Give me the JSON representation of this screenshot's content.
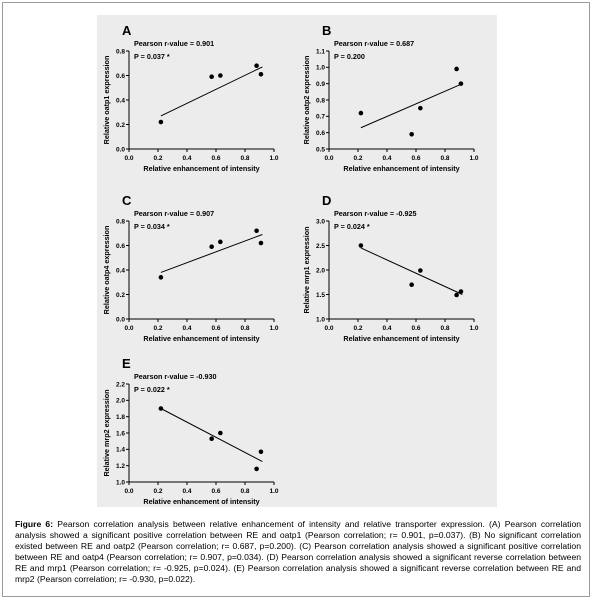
{
  "caption": {
    "label": "Figure 6:",
    "text": "Pearson correlation analysis between relative enhancement of intensity and relative transporter expression. (A) Pearson correlation analysis showed a significant positive correlation between RE and oatp1 (Pearson correlation; r= 0.901, p=0.037). (B) No significant correlation existed between RE and oatp2 (Pearson correlation; r= 0.687, p=0.200). (C) Pearson correlation analysis showed a significant positive correlation between RE and oatp4 (Pearson correlation; r= 0.907, p=0.034). (D) Pearson correlation analysis showed a significant reverse correlation between RE and mrp1 (Pearson correlation; r= -0.925, p=0.024). (E) Pearson correlation analysis showed a significant reverse correlation between RE and mrp2 (Pearson correlation; r= -0.930, p=0.022)."
  },
  "chart_data": [
    {
      "type": "scatter",
      "panel": "A",
      "stat_r": "Pearson r-value = 0.901",
      "stat_p": "P = 0.037 *",
      "xlabel": "Relative enhancement of intensity",
      "ylabel": "Relative oatp1 expression",
      "xlim": [
        0.0,
        1.0
      ],
      "ylim": [
        0.0,
        0.8
      ],
      "xticks": [
        "0.0",
        "0.2",
        "0.4",
        "0.6",
        "0.8",
        "1.0"
      ],
      "yticks": [
        "0.0",
        "0.2",
        "0.4",
        "0.6",
        "0.8"
      ],
      "x": [
        0.22,
        0.57,
        0.63,
        0.88,
        0.91
      ],
      "y": [
        0.22,
        0.59,
        0.6,
        0.68,
        0.61
      ],
      "fit": [
        [
          0.22,
          0.27
        ],
        [
          0.92,
          0.67
        ]
      ]
    },
    {
      "type": "scatter",
      "panel": "B",
      "stat_r": "Pearson r-value = 0.687",
      "stat_p": "P = 0.200",
      "xlabel": "Relative enhancement of intensity",
      "ylabel": "Relative oatp2 expression",
      "xlim": [
        0.0,
        1.0
      ],
      "ylim": [
        0.5,
        1.1
      ],
      "xticks": [
        "0.0",
        "0.2",
        "0.4",
        "0.6",
        "0.8",
        "1.0"
      ],
      "yticks": [
        "0.5",
        "0.6",
        "0.7",
        "0.8",
        "0.9",
        "1.0",
        "1.1"
      ],
      "x": [
        0.22,
        0.57,
        0.63,
        0.88,
        0.91
      ],
      "y": [
        0.72,
        0.59,
        0.75,
        0.99,
        0.9
      ],
      "fit": [
        [
          0.22,
          0.63
        ],
        [
          0.92,
          0.9
        ]
      ]
    },
    {
      "type": "scatter",
      "panel": "C",
      "stat_r": "Pearson r-value = 0.907",
      "stat_p": "P = 0.034 *",
      "xlabel": "Relative enhancement of intensity",
      "ylabel": "Relative oatp4 expression",
      "xlim": [
        0.0,
        1.0
      ],
      "ylim": [
        0.0,
        0.8
      ],
      "xticks": [
        "0.0",
        "0.2",
        "0.4",
        "0.6",
        "0.8",
        "1.0"
      ],
      "yticks": [
        "0.0",
        "0.2",
        "0.4",
        "0.6",
        "0.8"
      ],
      "x": [
        0.22,
        0.57,
        0.63,
        0.88,
        0.91
      ],
      "y": [
        0.34,
        0.59,
        0.63,
        0.72,
        0.62
      ],
      "fit": [
        [
          0.22,
          0.38
        ],
        [
          0.92,
          0.69
        ]
      ]
    },
    {
      "type": "scatter",
      "panel": "D",
      "stat_r": "Pearson r-value = -0.925",
      "stat_p": "P = 0.024 *",
      "xlabel": "Relative enhancement of intensity",
      "ylabel": "Relative mrp1 expression",
      "xlim": [
        0.0,
        1.0
      ],
      "ylim": [
        1.0,
        3.0
      ],
      "xticks": [
        "0.0",
        "0.2",
        "0.4",
        "0.6",
        "0.8",
        "1.0"
      ],
      "yticks": [
        "1.0",
        "1.5",
        "2.0",
        "2.5",
        "3.0"
      ],
      "x": [
        0.22,
        0.57,
        0.63,
        0.88,
        0.91
      ],
      "y": [
        2.5,
        1.7,
        1.99,
        1.49,
        1.56
      ],
      "fit": [
        [
          0.22,
          2.45
        ],
        [
          0.92,
          1.5
        ]
      ]
    },
    {
      "type": "scatter",
      "panel": "E",
      "stat_r": "Pearson r-value = -0.930",
      "stat_p": "P = 0.022 *",
      "xlabel": "Relative enhancement of intensity",
      "ylabel": "Relative mrp2 expression",
      "xlim": [
        0.0,
        1.0
      ],
      "ylim": [
        1.0,
        2.2
      ],
      "xticks": [
        "0.0",
        "0.2",
        "0.4",
        "0.6",
        "0.8",
        "1.0"
      ],
      "yticks": [
        "1.0",
        "1.2",
        "1.4",
        "1.6",
        "1.8",
        "2.0",
        "2.2"
      ],
      "x": [
        0.22,
        0.57,
        0.63,
        0.88,
        0.91
      ],
      "y": [
        1.9,
        1.53,
        1.6,
        1.16,
        1.37
      ],
      "fit": [
        [
          0.22,
          1.9
        ],
        [
          0.92,
          1.25
        ]
      ]
    }
  ]
}
